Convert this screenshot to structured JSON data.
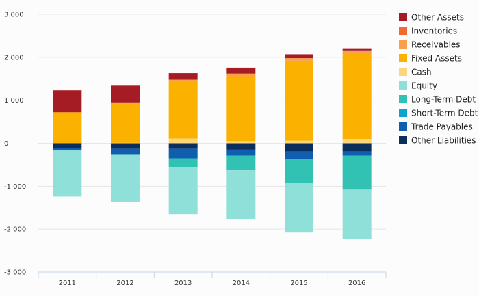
{
  "chart_data": {
    "type": "bar",
    "stacked": true,
    "categories": [
      "2011",
      "2012",
      "2013",
      "2014",
      "2015",
      "2016"
    ],
    "y_ticks": [
      "3 000",
      "2 000",
      "1 000",
      "0",
      "-1 000",
      "-2 000",
      "-3 000"
    ],
    "y_tick_values": [
      3000,
      2000,
      1000,
      0,
      -1000,
      -2000,
      -3000
    ],
    "ylim": [
      -3000,
      3000
    ],
    "grid": true,
    "legend_position": "right",
    "series": [
      {
        "name": "Other Assets",
        "color": "#a51c24",
        "values": [
          510,
          390,
          150,
          140,
          90,
          50
        ]
      },
      {
        "name": "Inventories",
        "color": "#f26a2e",
        "values": [
          0,
          0,
          0,
          0,
          0,
          0
        ]
      },
      {
        "name": "Receivables",
        "color": "#f8a04a",
        "values": [
          0,
          0,
          30,
          60,
          60,
          60
        ]
      },
      {
        "name": "Fixed Assets",
        "color": "#fbb100",
        "values": [
          720,
          940,
          1340,
          1510,
          1860,
          2000
        ]
      },
      {
        "name": "Cash",
        "color": "#fdd67c",
        "values": [
          0,
          10,
          110,
          50,
          60,
          100
        ]
      },
      {
        "name": "Equity",
        "color": "#8ee0d8",
        "values": [
          -1070,
          -1090,
          -1100,
          -1130,
          -1150,
          -1140
        ]
      },
      {
        "name": "Long-Term Debt",
        "color": "#32c2b3",
        "values": [
          0,
          0,
          -200,
          -340,
          -560,
          -790
        ]
      },
      {
        "name": "Short-Term Debt",
        "color": "#0ea2cf",
        "values": [
          0,
          0,
          0,
          0,
          0,
          0
        ]
      },
      {
        "name": "Trade Payables",
        "color": "#0f5eb0",
        "values": [
          -60,
          -140,
          -220,
          -140,
          -180,
          -100
        ]
      },
      {
        "name": "Other Liabilities",
        "color": "#0b2e5c",
        "values": [
          -110,
          -130,
          -130,
          -150,
          -190,
          -190
        ]
      }
    ]
  }
}
